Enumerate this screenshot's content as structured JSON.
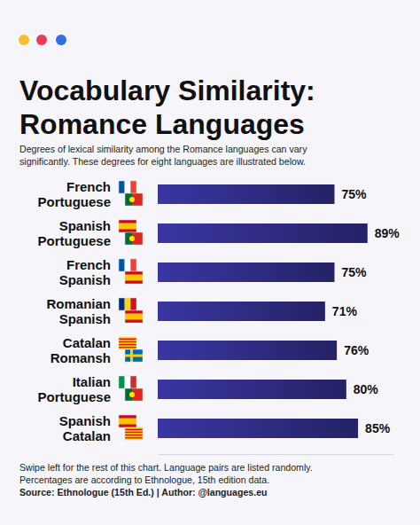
{
  "chart_data": {
    "type": "bar",
    "orientation": "horizontal",
    "title": "Vocabulary Similarity:\nRomance Languages",
    "subtitle": "Degrees of lexical similarity among the Romance languages can vary\nsignificantly. These degrees for eight languages are illustrated below.",
    "categories": [
      "French\nPortuguese",
      "Spanish\nPortuguese",
      "French\nSpanish",
      "Romanian\nSpanish",
      "Catalan\nRomansh",
      "Italian\nPortuguese",
      "Spanish\nCatalan"
    ],
    "values": [
      75,
      89,
      75,
      71,
      76,
      80,
      85
    ],
    "value_labels": [
      "75%",
      "89%",
      "75%",
      "71%",
      "76%",
      "80%",
      "85%"
    ],
    "data_labels": true,
    "color": "#2e2a7e",
    "xlim": [
      0,
      100
    ],
    "tick_labels": false,
    "grid": false,
    "notes": [
      "Swipe left for the rest of this chart. Language pairs are listed randomly.",
      "Percentages are according to Ethnologue, 15th edition data.",
      "Source:  Ethnologue (15th Ed.) | Author: @languages.eu"
    ]
  }
}
